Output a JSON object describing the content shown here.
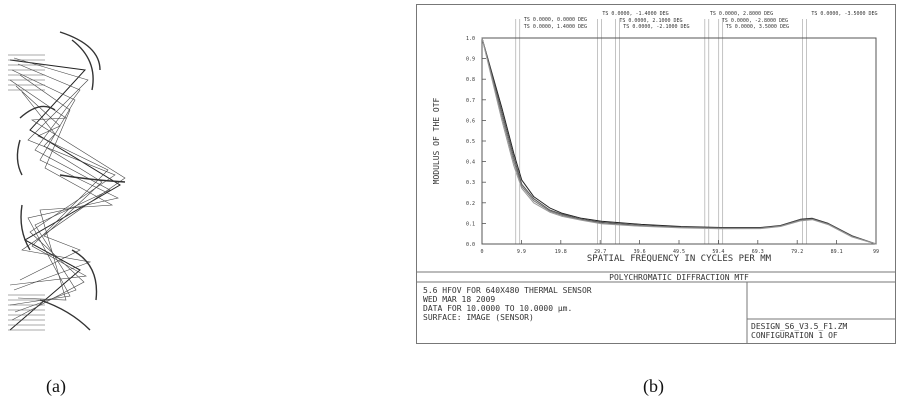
{
  "captions": {
    "a": "(a)",
    "b": "(b)"
  },
  "panel_a": {
    "description_icon": "lens-ray-trace-icon"
  },
  "chart_data": {
    "type": "line",
    "title": "POLYCHROMATIC DIFFRACTION MTF",
    "xlabel": "SPATIAL FREQUENCY IN CYCLES PER MM",
    "ylabel": "MODULUS OF THE OTF",
    "xlim": [
      0,
      99
    ],
    "ylim": [
      0,
      1.0
    ],
    "x_ticks": [
      "0",
      "9.9",
      "19.8",
      "29.7",
      "39.6",
      "49.5",
      "59.4",
      "69.3",
      "79.2",
      "89.1",
      "99"
    ],
    "y_ticks": [
      "0.0",
      "0.1",
      "0.2",
      "0.3",
      "0.4",
      "0.5",
      "0.6",
      "0.7",
      "0.8",
      "0.9",
      "1.0"
    ],
    "grid": false,
    "field_labels": [
      "TS 0.0000, 0.0000 DEG",
      "TS 0.0000, 1.4000 DEG",
      "TS 0.0000, -1.4000 DEG",
      "TS 0.0000, 2.1000 DEG",
      "TS 0.0000, -2.1000 DEG",
      "TS 0.0000, 2.8000 DEG",
      "TS 0.0000, -2.8000 DEG",
      "TS 0.0000, 3.5000 DEG",
      "TS 0.0000, -3.5000 DEG"
    ],
    "series": [
      {
        "x": [
          0,
          5,
          8,
          10,
          13,
          17,
          20,
          25,
          30,
          40,
          50,
          60,
          70,
          75,
          80,
          83,
          87,
          93,
          99
        ],
        "y": [
          1.0,
          0.66,
          0.44,
          0.31,
          0.23,
          0.175,
          0.15,
          0.125,
          0.11,
          0.095,
          0.085,
          0.08,
          0.08,
          0.09,
          0.12,
          0.125,
          0.1,
          0.04,
          0.0
        ]
      },
      {
        "x": [
          0,
          5,
          8,
          10,
          13,
          17,
          20,
          25,
          30,
          40,
          50,
          60,
          70,
          75,
          80,
          83,
          87,
          93,
          99
        ],
        "y": [
          1.0,
          0.64,
          0.42,
          0.29,
          0.22,
          0.165,
          0.145,
          0.12,
          0.105,
          0.09,
          0.082,
          0.078,
          0.078,
          0.088,
          0.118,
          0.122,
          0.098,
          0.038,
          0.0
        ]
      },
      {
        "x": [
          0,
          5,
          8,
          10,
          13,
          17,
          20,
          25,
          30,
          40,
          50,
          60,
          70,
          75,
          80,
          83,
          87,
          93,
          99
        ],
        "y": [
          1.0,
          0.62,
          0.4,
          0.28,
          0.21,
          0.16,
          0.14,
          0.118,
          0.1,
          0.088,
          0.08,
          0.076,
          0.076,
          0.086,
          0.115,
          0.12,
          0.096,
          0.036,
          0.0
        ]
      },
      {
        "x": [
          0,
          5,
          8,
          10,
          13,
          17,
          20,
          25,
          30,
          40,
          50,
          60,
          70,
          75,
          80,
          83,
          87,
          93,
          99
        ],
        "y": [
          1.0,
          0.6,
          0.38,
          0.27,
          0.2,
          0.155,
          0.135,
          0.115,
          0.098,
          0.086,
          0.078,
          0.074,
          0.075,
          0.085,
          0.112,
          0.118,
          0.094,
          0.034,
          0.0
        ]
      }
    ],
    "field_line_x": [
      8.5,
      9.5,
      29.0,
      30.0,
      33.5,
      34.5,
      56.0,
      57.0,
      59.5,
      60.5,
      80.5,
      81.5
    ]
  },
  "footer": {
    "title": "POLYCHROMATIC DIFFRACTION MTF",
    "line1": "5.6 HFOV FOR 640X480 THERMAL SENSOR",
    "line2": "WED MAR 18 2009",
    "line3": "DATA FOR 10.0000 TO 10.0000 µm.",
    "line4": "SURFACE: IMAGE (SENSOR)",
    "file": "DESIGN_S6_V3.5_F1.ZM",
    "config": "CONFIGURATION 1 OF"
  }
}
